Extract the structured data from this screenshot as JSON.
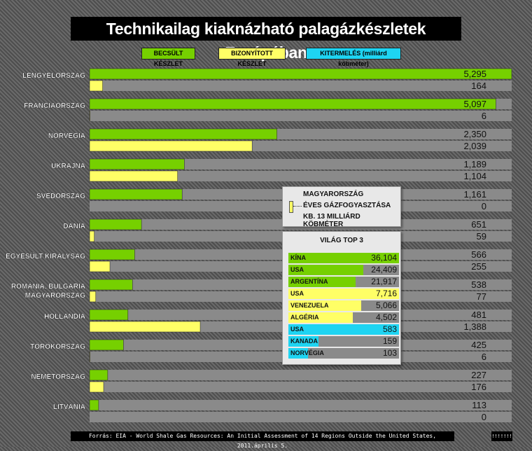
{
  "title": "Technikailag kiaknázható palagázkészletek Európában",
  "legend": {
    "estimated": "BECSÜLT KÉSZLET",
    "proven": "BIZONYÍTOTT KÉSZLET",
    "production": "KITERMELÉS (milliárd köbméter)"
  },
  "colors": {
    "estimated": "#76d000",
    "proven": "#ffff66",
    "production": "#1ed4f2",
    "track": "#8a8a8a",
    "none": "#8a8a8a"
  },
  "chart_data": {
    "type": "bar",
    "orientation": "horizontal",
    "title": "Technikailag kiaknázható palagázkészletek Európában",
    "categories": [
      "LENGYELORSZÁG",
      "FRANCIAORSZÁG",
      "NORVÉGIA",
      "UKRAJNA",
      "SVÉDORSZÁG",
      "DÁNIA",
      "EGYESÜLT KIRÁLYSÁG",
      "ROMÁNIA, BULGÁRIA|MAGYARORSZÁG",
      "HOLLANDIA",
      "TÖRÖKORSZÁG",
      "NÉMETORSZÁG",
      "LITVÁNIA"
    ],
    "series": [
      {
        "name": "BECSÜLT KÉSZLET",
        "values": [
          5295,
          5097,
          2350,
          1189,
          1161,
          651,
          566,
          538,
          481,
          425,
          227,
          113
        ],
        "labels": [
          "5,295",
          "5,097",
          "2,350",
          "1,189",
          "1,161",
          "651",
          "566",
          "538",
          "481",
          "425",
          "227",
          "113"
        ]
      },
      {
        "name": "BIZONYÍTOTT KÉSZLET",
        "values": [
          164,
          6,
          2039,
          1104,
          0,
          59,
          255,
          77,
          1388,
          6,
          176,
          0
        ],
        "labels": [
          "164",
          "6",
          "2,039",
          "1,104",
          "0",
          "59",
          "255",
          "77",
          "1,388",
          "6",
          "176",
          "0"
        ]
      }
    ],
    "xlim": [
      0,
      5295
    ]
  },
  "hungary_note": {
    "line1": "MAGYARORSZÁG",
    "line2": "ÉVES GÁZFOGYASZTÁSA",
    "line3": "KB. 13 MILLIÁRD KÖBMÉTER",
    "value": 13
  },
  "world_top3": {
    "title": "VILÁG TOP 3",
    "rows": [
      {
        "name": "KÍNA",
        "value": 36104,
        "label": "36,104",
        "group": "estimated",
        "max": 36104
      },
      {
        "name": "USA",
        "value": 24409,
        "label": "24,409",
        "group": "estimated",
        "max": 36104
      },
      {
        "name": "ARGENTÍNA",
        "value": 21917,
        "label": "21,917",
        "group": "estimated",
        "max": 36104
      },
      {
        "name": "USA",
        "value": 7716,
        "label": "7,716",
        "group": "proven",
        "max": 7716
      },
      {
        "name": "VENEZUELA",
        "value": 5066,
        "label": "5,066",
        "group": "proven",
        "max": 7716
      },
      {
        "name": "ALGÉRIA",
        "value": 4502,
        "label": "4,502",
        "group": "proven",
        "max": 7716
      },
      {
        "name": "USA",
        "value": 583,
        "label": "583",
        "group": "production",
        "max": 583
      },
      {
        "name": "KANADA",
        "value": 159,
        "label": "159",
        "group": "production",
        "max": 583
      },
      {
        "name": "NORVÉGIA",
        "value": 103,
        "label": "103",
        "group": "production",
        "max": 583
      }
    ]
  },
  "footer": {
    "source": "Forrás: EIA - World Shale Gas Resources: An Initial Assessment of 14 Regions Outside the United States, 2011.április 5.",
    "logo": "!!!!!!!"
  }
}
